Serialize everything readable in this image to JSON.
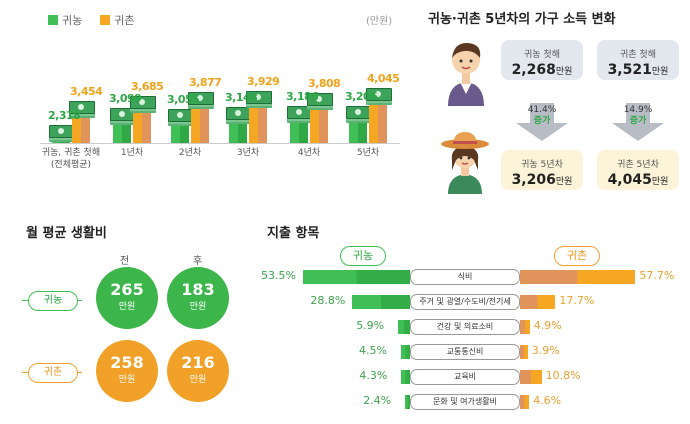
{
  "legend": {
    "return_farm": "귀농",
    "return_rural": "귀촌",
    "unit": "(만원)"
  },
  "colors": {
    "green": "#3fbf55",
    "orange": "#f5a623"
  },
  "chart_data": {
    "type": "bar",
    "categories": [
      "귀농, 귀촌 첫해\n(전체평균)",
      "1년차",
      "2년차",
      "3년차",
      "4년차",
      "5년차"
    ],
    "series": [
      {
        "name": "귀농",
        "values": [
          2318,
          3099,
          3055,
          3148,
          3186,
          3206
        ]
      },
      {
        "name": "귀촌",
        "values": [
          3454,
          3685,
          3877,
          3929,
          3808,
          4045
        ]
      }
    ],
    "value_labels": {
      "귀농": [
        "2,318",
        "3,099",
        "3,055",
        "3,148",
        "3,186",
        "3,206"
      ],
      "귀촌": [
        "3,454",
        "3,685",
        "3,877",
        "3,929",
        "3,808",
        "4,045"
      ]
    },
    "ylim": [
      0,
      4500
    ]
  },
  "income": {
    "title": "귀농·귀촌 5년차의 가구 소득 변화",
    "farm_first_label": "귀농 첫해",
    "farm_first_value": "2,268",
    "farm_first_unit": "만원",
    "rural_first_label": "귀촌 첫해",
    "rural_first_value": "3,521",
    "rural_first_unit": "만원",
    "farm_change_pct": "41.4%",
    "farm_change_word": "증가",
    "rural_change_pct": "14.9%",
    "rural_change_word": "증가",
    "farm_fifth_label": "귀농 5년차",
    "farm_fifth_value": "3,206",
    "farm_fifth_unit": "만원",
    "rural_fifth_label": "귀촌 5년차",
    "rural_fifth_value": "4,045",
    "rural_fifth_unit": "만원"
  },
  "living": {
    "title": "월 평균 생활비",
    "before": "전",
    "after": "후",
    "farm_label": "귀농",
    "rural_label": "귀촌",
    "farm_before": "265",
    "farm_after": "183",
    "rural_before": "258",
    "rural_after": "216",
    "unit": "만원"
  },
  "expense": {
    "title": "지출 항목",
    "farm_label": "귀농",
    "rural_label": "귀촌",
    "items": [
      {
        "name": "식비",
        "farm": "53.5%",
        "rural": "57.7%",
        "farm_v": 53.5,
        "rural_v": 57.7
      },
      {
        "name": "주거 및 광열/수도비/전기세",
        "farm": "28.8%",
        "rural": "17.7%",
        "farm_v": 28.8,
        "rural_v": 17.7
      },
      {
        "name": "건강 및 의료소비",
        "farm": "5.9%",
        "rural": "4.9%",
        "farm_v": 5.9,
        "rural_v": 4.9
      },
      {
        "name": "교통통신비",
        "farm": "4.5%",
        "rural": "3.9%",
        "farm_v": 4.5,
        "rural_v": 3.9
      },
      {
        "name": "교육비",
        "farm": "4.3%",
        "rural": "10.8%",
        "farm_v": 4.3,
        "rural_v": 10.8
      },
      {
        "name": "문화 및 여가생활비",
        "farm": "2.4%",
        "rural": "4.6%",
        "farm_v": 2.4,
        "rural_v": 4.6
      }
    ]
  }
}
